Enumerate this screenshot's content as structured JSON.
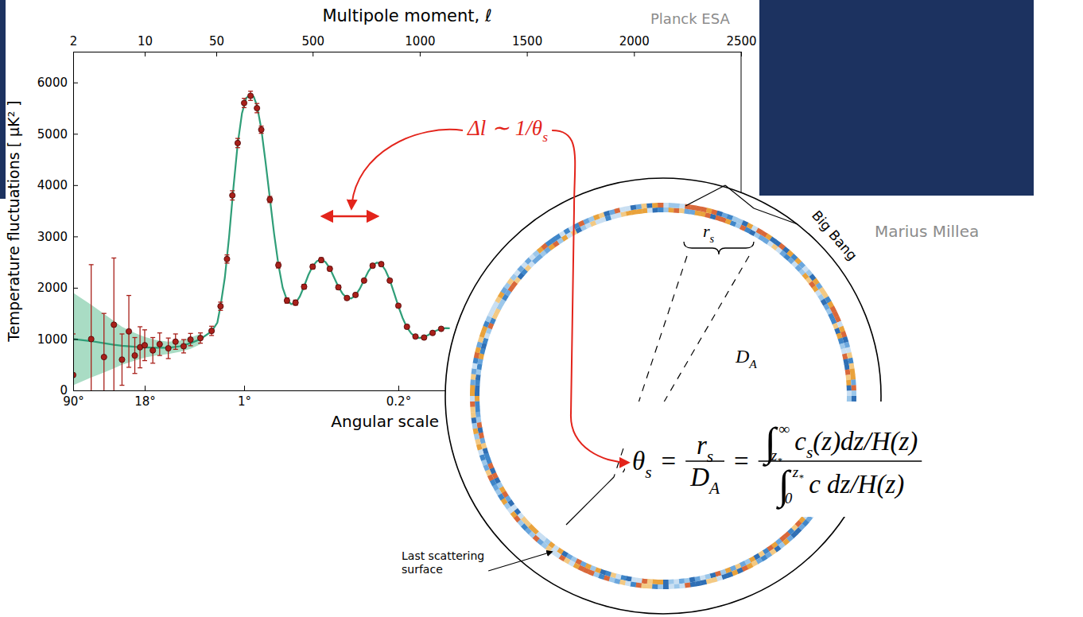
{
  "chart_data": {
    "type": "scatter",
    "x_label": "Multipole moment, ℓ",
    "x2_label": "Angular scale",
    "y_label": "Temperature fluctuations [ μK² ]",
    "xlim": [
      2,
      2500
    ],
    "xticks": [
      2,
      10,
      50,
      500,
      1000,
      1500,
      2000,
      2500
    ],
    "x2ticks": [
      {
        "value": 2,
        "label": "90°"
      },
      {
        "value": 10,
        "label": "18°"
      },
      {
        "value": 180,
        "label": "1°"
      },
      {
        "value": 900,
        "label": "0.2°"
      }
    ],
    "ylim": [
      0,
      6600
    ],
    "yticks": [
      0,
      1000,
      2000,
      3000,
      4000,
      5000,
      6000
    ],
    "series": [
      {
        "type": "area",
        "color": "#a9dcc4",
        "x": [
          2,
          3,
          4,
          5,
          6,
          8,
          10,
          13,
          17,
          22,
          28,
          35
        ],
        "lower": [
          100,
          250,
          350,
          430,
          500,
          580,
          640,
          680,
          710,
          750,
          810,
          900
        ],
        "upper": [
          1900,
          1670,
          1490,
          1350,
          1240,
          1120,
          1040,
          980,
          950,
          970,
          1030,
          1100
        ]
      },
      {
        "type": "line",
        "color": "#2f9e78",
        "x": [
          2,
          3,
          4,
          5,
          6,
          8,
          10,
          13,
          17,
          22,
          28,
          35,
          45,
          55,
          70,
          90,
          110,
          130,
          150,
          170,
          190,
          210,
          225,
          240,
          260,
          280,
          300,
          320,
          340,
          360,
          380,
          400,
          420,
          440,
          460,
          480,
          500,
          520,
          540,
          560,
          580,
          600,
          620,
          640,
          660,
          680,
          700,
          720,
          740,
          760,
          780,
          800,
          820,
          840,
          860,
          880,
          900,
          920,
          940,
          960,
          980,
          1000,
          1020,
          1040,
          1060,
          1080,
          1100,
          1120,
          1140
        ],
        "values": [
          1000,
          960,
          920,
          890,
          870,
          850,
          840,
          830,
          830,
          860,
          920,
          1000,
          1150,
          1320,
          1650,
          2200,
          3000,
          3950,
          4800,
          5400,
          5700,
          5760,
          5720,
          5550,
          5100,
          4450,
          3750,
          3050,
          2450,
          2000,
          1760,
          1680,
          1700,
          1830,
          2030,
          2250,
          2420,
          2520,
          2550,
          2500,
          2380,
          2200,
          2020,
          1880,
          1800,
          1790,
          1850,
          1980,
          2150,
          2320,
          2440,
          2490,
          2460,
          2340,
          2150,
          1900,
          1640,
          1410,
          1230,
          1110,
          1040,
          1020,
          1040,
          1080,
          1130,
          1170,
          1200,
          1215,
          1210
        ]
      },
      {
        "type": "scatter",
        "color": "#a8201a",
        "marker": "circle",
        "x": [
          2,
          3,
          4,
          5,
          6,
          7,
          8,
          9,
          10,
          12,
          14,
          17,
          20,
          24,
          28,
          35,
          45,
          70,
          100,
          125,
          150,
          180,
          210,
          240,
          260,
          300,
          340,
          380,
          420,
          460,
          500,
          540,
          580,
          620,
          660,
          700,
          740,
          780,
          820,
          860,
          900,
          940,
          980,
          1020,
          1060,
          1100
        ],
        "values": [
          300,
          1000,
          650,
          1280,
          600,
          1150,
          680,
          840,
          880,
          780,
          900,
          820,
          950,
          860,
          990,
          1020,
          1160,
          1640,
          2560,
          3800,
          4820,
          5600,
          5740,
          5500,
          5080,
          3720,
          2440,
          1750,
          1710,
          2020,
          2410,
          2540,
          2370,
          2010,
          1800,
          1860,
          2140,
          2430,
          2460,
          2140,
          1650,
          1240,
          1050,
          1030,
          1120,
          1200
        ],
        "errors": [
          800,
          1450,
          850,
          1300,
          500,
          700,
          350,
          400,
          300,
          250,
          220,
          200,
          150,
          130,
          120,
          100,
          90,
          80,
          80,
          90,
          90,
          90,
          90,
          90,
          70,
          60,
          55,
          50,
          50,
          45,
          45,
          45,
          40,
          40,
          35,
          35,
          35,
          35,
          35,
          30,
          30,
          30,
          25,
          25,
          25,
          25
        ]
      }
    ]
  },
  "credits": [
    "Planck ESA",
    "Marius Millea"
  ],
  "diagram": {
    "outer_label": "Big Bang",
    "surface_label": "Last scattering surface",
    "sound_horizon": [
      {
        "text": "r",
        "sub": "s"
      }
    ],
    "distance": [
      {
        "text": "D",
        "sub": "A"
      }
    ],
    "annotation": [
      {
        "text": "Δl ∼ 1/θ",
        "sub": "s"
      }
    ],
    "formula": {
      "lhs": [
        {
          "text": "θ",
          "sub": "s"
        }
      ],
      "equals": "=",
      "ratio": {
        "numerator": [
          {
            "text": "r",
            "sub": "s"
          }
        ],
        "denominator": [
          {
            "text": "D",
            "sub": "A"
          }
        ]
      },
      "integrals": {
        "numerator": {
          "sign": "∫",
          "upper": [
            {
              "text": "∞"
            }
          ],
          "lower": [
            {
              "text": "z",
              "sub": "*"
            }
          ],
          "body": [
            {
              "text": "c",
              "sub": "s"
            },
            {
              "text": "(z)dz/H(z)"
            }
          ]
        },
        "denominator": {
          "sign": "∫",
          "upper": [
            {
              "text": "z",
              "sub": "*"
            }
          ],
          "lower": [
            {
              "text": "0"
            }
          ],
          "body": [
            {
              "text": "c dz/H(z)"
            }
          ]
        }
      }
    }
  }
}
